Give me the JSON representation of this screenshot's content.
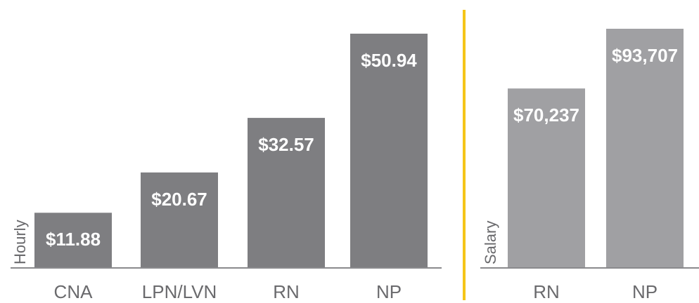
{
  "chart_data": [
    {
      "type": "bar",
      "y_label": "Hourly",
      "categories": [
        "CNA",
        "LPN/LVN",
        "RN",
        "NP"
      ],
      "values": [
        11.88,
        20.67,
        32.57,
        50.94
      ],
      "value_labels": [
        "$11.88",
        "$20.67",
        "$32.57",
        "$50.94"
      ],
      "color": "#7e7e81"
    },
    {
      "type": "bar",
      "y_label": "Salary",
      "categories": [
        "RN",
        "NP"
      ],
      "values": [
        70237,
        93707
      ],
      "value_labels": [
        "$70,237",
        "$93,707"
      ],
      "color": "#a0a0a3"
    }
  ]
}
